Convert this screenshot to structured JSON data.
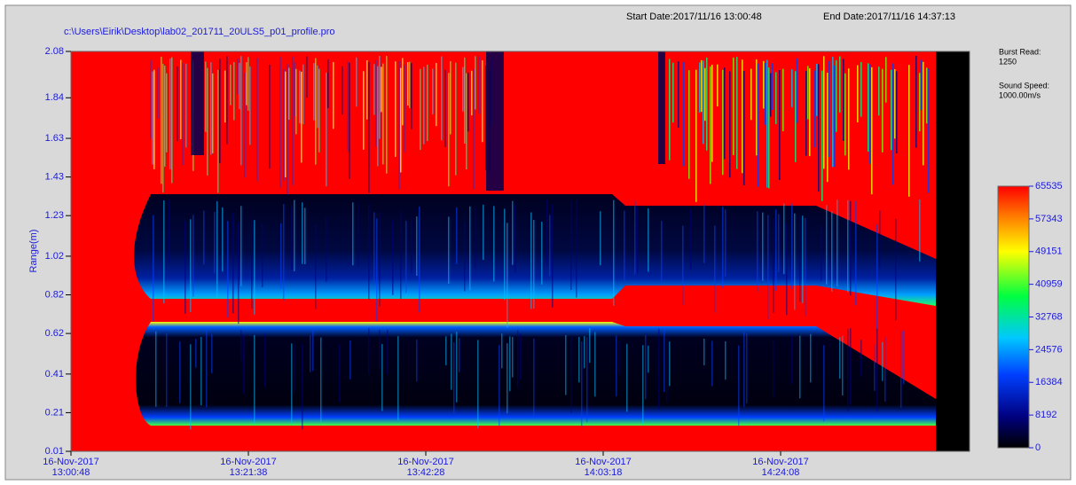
{
  "chart_data": {
    "type": "heatmap",
    "title": "c:\\Users\\Eirik\\Desktop\\lab02_201711_20ULS5_p01_profile.pro",
    "start_date": "Start Date:2017/11/16 13:00:48",
    "end_date": "End Date:2017/11/16 14:37:13",
    "burst_read_label": "Burst Read:",
    "burst_read": "1250",
    "sound_speed_label": "Sound Speed:",
    "sound_speed": "1000.00m/s",
    "ylabel": "Range(m)",
    "ylim": [
      0.01,
      2.08
    ],
    "yticks": [
      0.01,
      0.21,
      0.41,
      0.62,
      0.82,
      1.02,
      1.23,
      1.43,
      1.63,
      1.84,
      2.08
    ],
    "xticks": [
      {
        "date": "16-Nov-2017",
        "time": "13:00:48"
      },
      {
        "date": "16-Nov-2017",
        "time": "13:21:38"
      },
      {
        "date": "16-Nov-2017",
        "time": "13:42:28"
      },
      {
        "date": "16-Nov-2017",
        "time": "14:03:18"
      },
      {
        "date": "16-Nov-2017",
        "time": "14:24:08"
      }
    ],
    "colorbar": {
      "lim": [
        0,
        65535
      ],
      "ticks": [
        65535,
        57343,
        49151,
        40959,
        32768,
        24576,
        16384,
        8192,
        0
      ]
    }
  }
}
